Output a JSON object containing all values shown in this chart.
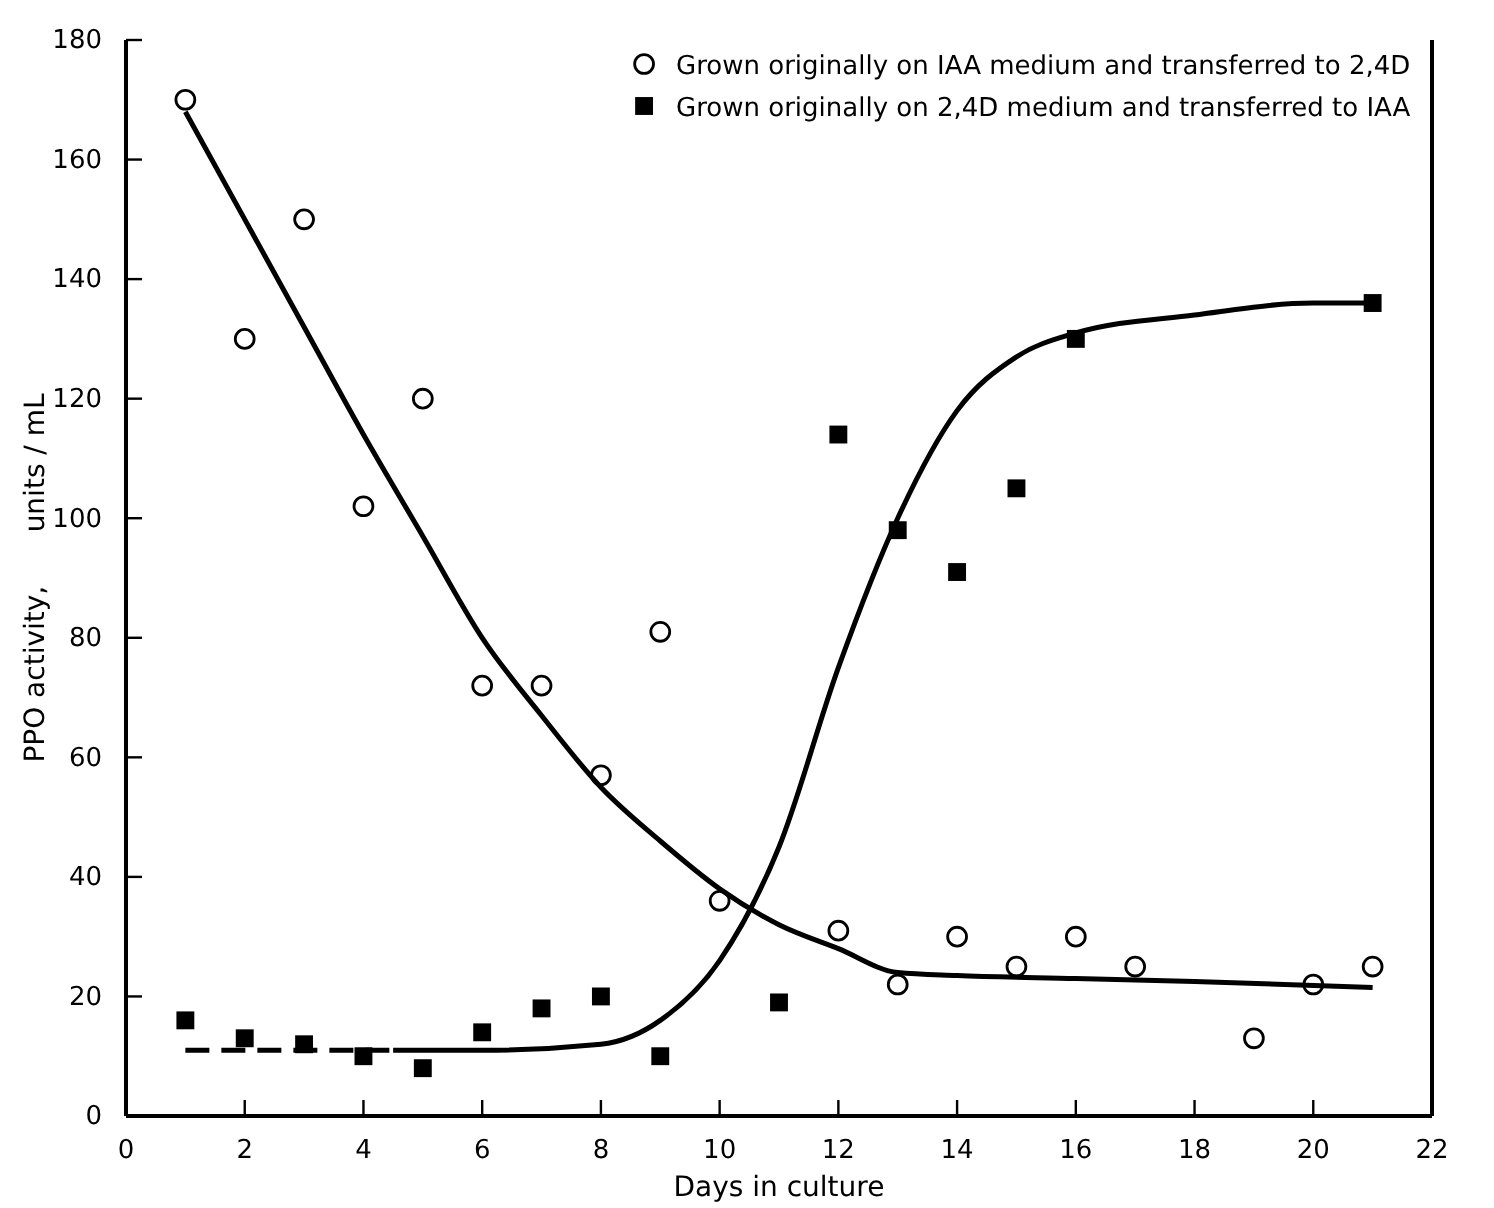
{
  "chart_data": {
    "type": "scatter",
    "xlabel": "Days in culture",
    "ylabel": "PPO activity,      units / mL",
    "xlim": [
      0,
      22
    ],
    "ylim": [
      0,
      180
    ],
    "xticks": [
      0,
      2,
      4,
      6,
      8,
      10,
      12,
      14,
      16,
      18,
      20,
      22
    ],
    "yticks": [
      0,
      20,
      40,
      60,
      80,
      100,
      120,
      140,
      160,
      180
    ],
    "grid": false,
    "legend": "top right",
    "series": [
      {
        "name": "Grown originally on IAA medium and transferred to 2,4D",
        "color": "#000000",
        "marker": "circle",
        "x": [
          1,
          2,
          3,
          4,
          5,
          6,
          7,
          8,
          9,
          10,
          12,
          13,
          14,
          15,
          16,
          17,
          19,
          20,
          21
        ],
        "values": [
          170,
          130,
          150,
          102,
          120,
          72,
          72,
          57,
          81,
          36,
          31,
          22,
          30,
          25,
          30,
          25,
          13,
          22,
          25
        ]
      },
      {
        "name": "Grown originally on 2,4D medium and transferred to IAA",
        "color": "#000000",
        "marker": "square",
        "x": [
          1,
          2,
          3,
          4,
          5,
          6,
          7,
          8,
          9,
          11,
          12,
          13,
          14,
          15,
          16,
          21
        ],
        "values": [
          16,
          13,
          12,
          10,
          8,
          14,
          18,
          20,
          10,
          19,
          114,
          98,
          91,
          105,
          130,
          136
        ]
      },
      {
        "type": "line",
        "color": "#000000",
        "line_style": "solid",
        "marker": "none",
        "x": [
          1,
          2,
          3,
          4,
          5,
          6,
          7,
          8,
          9,
          10,
          11,
          12,
          13,
          14,
          16,
          18,
          21
        ],
        "values": [
          168,
          150,
          132,
          114,
          97,
          80,
          67,
          55,
          46,
          38,
          32,
          28,
          24,
          23.5,
          23,
          22.5,
          21.5
        ]
      },
      {
        "type": "line",
        "color": "#000000",
        "line_style": "dashed",
        "marker": "none",
        "x": [
          1,
          2,
          3,
          4,
          4.5
        ],
        "values": [
          11,
          11,
          11,
          11,
          11
        ]
      },
      {
        "type": "line",
        "color": "#000000",
        "line_style": "solid",
        "marker": "none",
        "x": [
          4.5,
          6,
          8,
          9,
          10,
          11,
          12,
          13,
          14,
          15,
          16,
          18,
          20,
          21
        ],
        "values": [
          11,
          11,
          12,
          16,
          26,
          45,
          75,
          100,
          118,
          127,
          131,
          134,
          136,
          136
        ]
      }
    ]
  }
}
